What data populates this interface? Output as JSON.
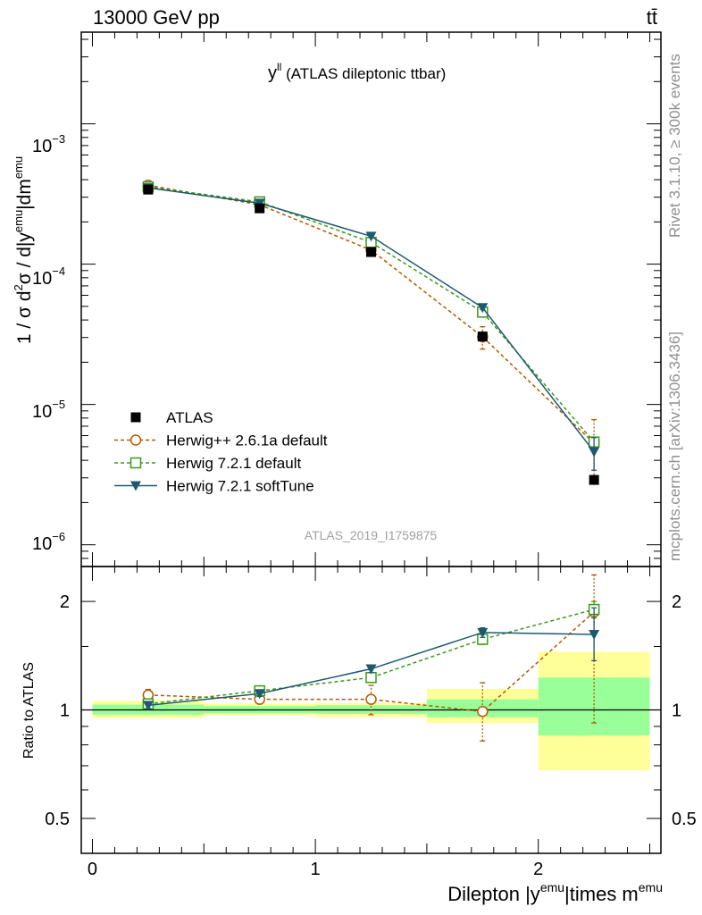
{
  "header": {
    "energy_label": "13000 GeV pp",
    "process_label": "tt̄"
  },
  "plot_title": {
    "main": "y",
    "sup": "ll",
    "rest": " (ATLAS dileptonic ttbar)"
  },
  "y_axis_label": {
    "a": "1 / σ  d",
    "a_sup": "2",
    "b": "σ / d|y",
    "b_sup": "emu",
    "c": "|dm",
    "c_sup": "emu"
  },
  "ratio_axis_label": "Ratio to ATLAS",
  "x_axis_label": {
    "a": "Dilepton |y",
    "a_sup": "emu",
    "b": "|times m",
    "b_sup": "emu"
  },
  "side_labels": {
    "rivet": "Rivet 3.1.10, ≥ 300k events",
    "mcplots": "mcplots.cern.ch [arXiv:1306.3436]"
  },
  "watermark": "ATLAS_2019_I1759875",
  "legend": [
    {
      "label": "ATLAS",
      "marker": "square-filled",
      "color": "#000000"
    },
    {
      "label": "Herwig++ 2.6.1a default",
      "marker": "circle-open",
      "color": "#b35900"
    },
    {
      "label": "Herwig 7.2.1 default",
      "marker": "square-open",
      "color": "#3a9a1a"
    },
    {
      "label": "Herwig 7.2.1 softTune",
      "marker": "triangle-down-filled",
      "color": "#1d5a6e"
    }
  ],
  "colors": {
    "data": "#000000",
    "herwigpp": "#b35900",
    "herwig721": "#3a9a1a",
    "softtune": "#1d5a6e",
    "band_outer": "#ffff99",
    "band_inner": "#99ff99"
  },
  "chart_data": [
    {
      "type": "scatter",
      "panel": "main",
      "yscale": "log",
      "xlim": [
        -0.05,
        2.55
      ],
      "ylim": [
        7e-07,
        0.0045
      ],
      "y_tick_labels": [
        "10^-6",
        "10^-5",
        "10^-4",
        "10^-3"
      ],
      "x_bins": [
        [
          0,
          0.5
        ],
        [
          0.5,
          1.0
        ],
        [
          1.0,
          1.5
        ],
        [
          1.5,
          2.0
        ],
        [
          2.0,
          2.5
        ]
      ],
      "x": [
        0.25,
        0.75,
        1.25,
        1.75,
        2.25
      ],
      "series": [
        {
          "name": "ATLAS",
          "values": [
            0.00034,
            0.00025,
            0.000122,
            3.05e-05,
            2.9e-06
          ],
          "err_lo": [
            1.2e-05,
            9e-06,
            5e-06,
            2.5e-06,
            2e-07
          ],
          "err_hi": [
            1.2e-05,
            9e-06,
            5e-06,
            2.5e-06,
            2e-07
          ]
        },
        {
          "name": "Herwig++ 2.6.1a default",
          "values": [
            0.000365,
            0.000265,
            0.000126,
            3.03e-05,
            5.3e-06
          ],
          "err_lo": [
            1.5e-05,
            7e-06,
            6e-06,
            5.5e-06,
            2.5e-06
          ],
          "err_hi": [
            1.5e-05,
            7e-06,
            6e-06,
            5.5e-06,
            2.5e-06
          ]
        },
        {
          "name": "Herwig 7.2.1 default",
          "values": [
            0.000355,
            0.000278,
            0.000143,
            4.55e-05,
            5.4e-06
          ],
          "err_lo": [
            4e-06,
            3e-06,
            3e-06,
            1.5e-06,
            4e-07
          ],
          "err_hi": [
            4e-06,
            3e-06,
            3e-06,
            1.5e-06,
            4e-07
          ]
        },
        {
          "name": "Herwig 7.2.1 softTune",
          "values": [
            0.00035,
            0.000272,
            0.000158,
            4.9e-05,
            4.6e-06
          ],
          "err_lo": [
            4e-06,
            3e-06,
            3e-06,
            1.5e-06,
            1.2e-06
          ],
          "err_hi": [
            4e-06,
            3e-06,
            3e-06,
            1.5e-06,
            1.2e-06
          ]
        }
      ]
    },
    {
      "type": "scatter",
      "panel": "ratio",
      "yscale": "log",
      "ylabel": "Ratio to ATLAS",
      "xlabel": "Dilepton |y^emu|times m^emu",
      "xlim": [
        -0.05,
        2.55
      ],
      "ylim": [
        0.4,
        2.5
      ],
      "y_ticks": [
        0.5,
        1,
        2
      ],
      "y_tick_labels": [
        "0.5",
        "1",
        "2"
      ],
      "x_ticks": [
        0,
        1,
        2
      ],
      "x_tick_labels": [
        "0",
        "1",
        "2"
      ],
      "x": [
        0.25,
        0.75,
        1.25,
        1.75,
        2.25
      ],
      "bands": [
        {
          "x0": 0.0,
          "x1": 0.5,
          "outer": [
            0.95,
            1.06
          ],
          "inner": [
            0.97,
            1.035
          ]
        },
        {
          "x0": 0.5,
          "x1": 1.0,
          "outer": [
            0.965,
            1.04
          ],
          "inner": [
            0.98,
            1.025
          ]
        },
        {
          "x0": 1.0,
          "x1": 1.5,
          "outer": [
            0.955,
            1.045
          ],
          "inner": [
            0.975,
            1.03
          ]
        },
        {
          "x0": 1.5,
          "x1": 2.0,
          "outer": [
            0.92,
            1.145
          ],
          "inner": [
            0.955,
            1.07
          ]
        },
        {
          "x0": 2.0,
          "x1": 2.5,
          "outer": [
            0.68,
            1.45
          ],
          "inner": [
            0.85,
            1.23
          ]
        }
      ],
      "series": [
        {
          "name": "Herwig++ 2.6.1a default",
          "values": [
            1.1,
            1.07,
            1.07,
            0.99,
            1.87
          ],
          "err_lo": [
            0.04,
            0.03,
            0.1,
            0.17,
            0.95
          ],
          "err_hi": [
            0.04,
            0.03,
            0.1,
            0.2,
            0.5
          ]
        },
        {
          "name": "Herwig 7.2.1 default",
          "values": [
            1.04,
            1.13,
            1.23,
            1.57,
            1.9
          ],
          "err_lo": [
            0.02,
            0.02,
            0.03,
            0.05,
            0.1
          ],
          "err_hi": [
            0.02,
            0.02,
            0.03,
            0.05,
            0.1
          ]
        },
        {
          "name": "Herwig 7.2.1 softTune",
          "values": [
            1.03,
            1.11,
            1.3,
            1.64,
            1.62
          ],
          "err_lo": [
            0.02,
            0.02,
            0.03,
            0.05,
            0.25
          ],
          "err_hi": [
            0.02,
            0.02,
            0.03,
            0.05,
            0.3
          ]
        }
      ]
    }
  ]
}
